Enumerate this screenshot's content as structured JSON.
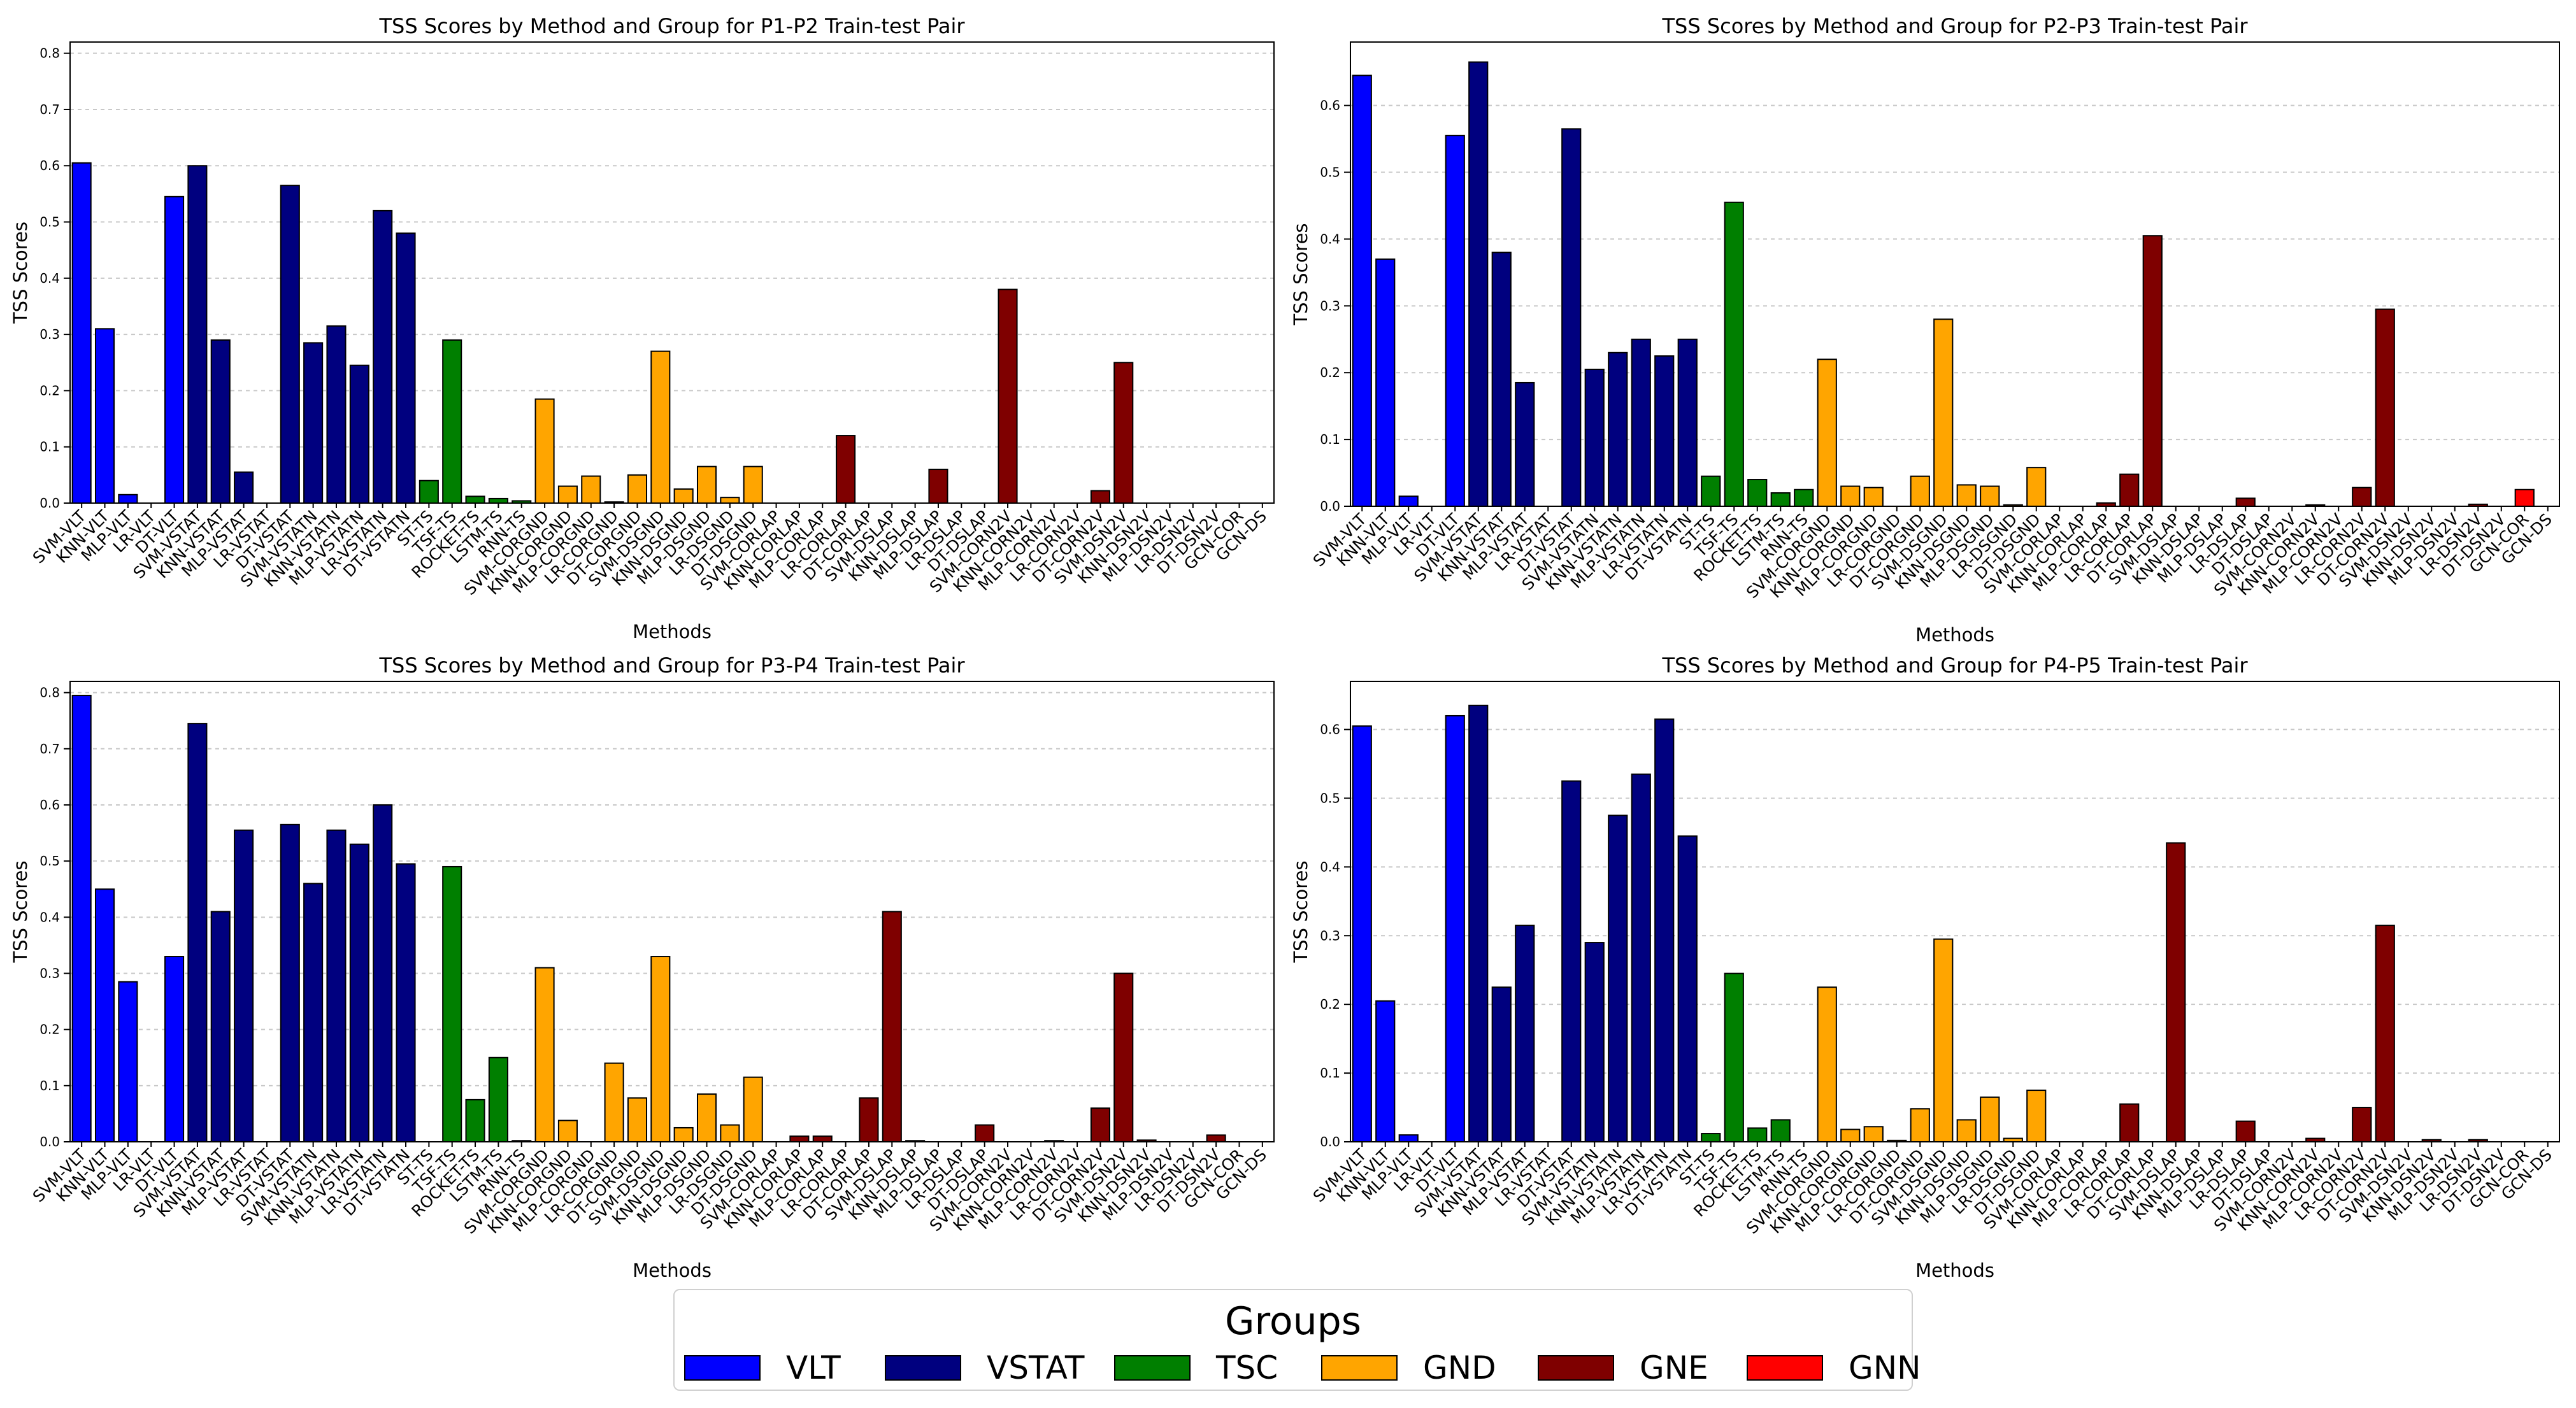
{
  "y_axis_label": "TSS Scores",
  "x_axis_label": "Methods",
  "legend": {
    "title": "Groups",
    "items": [
      {
        "name": "VLT",
        "color": "#0000ff"
      },
      {
        "name": "VSTAT",
        "color": "#00007f"
      },
      {
        "name": "TSC",
        "color": "#007f00"
      },
      {
        "name": "GND",
        "color": "#ffa500"
      },
      {
        "name": "GNE",
        "color": "#7f0000"
      },
      {
        "name": "GNN",
        "color": "#ff0000"
      }
    ]
  },
  "chart_data": [
    {
      "type": "bar",
      "title": "TSS Scores by Method and Group for P1-P2 Train-test Pair",
      "xlabel": "Methods",
      "ylabel": "TSS Scores",
      "ylim": [
        0,
        0.82
      ],
      "yticks": [
        "0.0",
        "0.1",
        "0.2",
        "0.3",
        "0.4",
        "0.5",
        "0.6",
        "0.7",
        "0.8"
      ],
      "categories": [
        "SVM-VLT",
        "KNN-VLT",
        "MLP-VLT",
        "LR-VLT",
        "DT-VLT",
        "SVM-VSTAT",
        "KNN-VSTAT",
        "MLP-VSTAT",
        "LR-VSTAT",
        "DT-VSTAT",
        "SVM-VSTATN",
        "KNN-VSTATN",
        "MLP-VSTATN",
        "LR-VSTATN",
        "DT-VSTATN",
        "ST-TS",
        "TSF-TS",
        "ROCKET-TS",
        "LSTM-TS",
        "RNN-TS",
        "SVM-CORGND",
        "KNN-CORGND",
        "MLP-CORGND",
        "LR-CORGND",
        "DT-CORGND",
        "SVM-DSGND",
        "KNN-DSGND",
        "MLP-DSGND",
        "LR-DSGND",
        "DT-DSGND",
        "SVM-CORLAP",
        "KNN-CORLAP",
        "MLP-CORLAP",
        "LR-CORLAP",
        "DT-CORLAP",
        "SVM-DSLAP",
        "KNN-DSLAP",
        "MLP-DSLAP",
        "LR-DSLAP",
        "DT-DSLAP",
        "SVM-CORN2V",
        "KNN-CORN2V",
        "MLP-CORN2V",
        "LR-CORN2V",
        "DT-CORN2V",
        "SVM-DSN2V",
        "KNN-DSN2V",
        "MLP-DSN2V",
        "LR-DSN2V",
        "DT-DSN2V",
        "GCN-COR",
        "GCN-DS"
      ],
      "groups": [
        "VLT",
        "VLT",
        "VLT",
        "VLT",
        "VLT",
        "VSTAT",
        "VSTAT",
        "VSTAT",
        "VSTAT",
        "VSTAT",
        "VSTAT",
        "VSTAT",
        "VSTAT",
        "VSTAT",
        "VSTAT",
        "TSC",
        "TSC",
        "TSC",
        "TSC",
        "TSC",
        "GND",
        "GND",
        "GND",
        "GND",
        "GND",
        "GND",
        "GND",
        "GND",
        "GND",
        "GND",
        "GNE",
        "GNE",
        "GNE",
        "GNE",
        "GNE",
        "GNE",
        "GNE",
        "GNE",
        "GNE",
        "GNE",
        "GNE",
        "GNE",
        "GNE",
        "GNE",
        "GNE",
        "GNE",
        "GNE",
        "GNE",
        "GNE",
        "GNE",
        "GNN",
        "GNN"
      ],
      "values": [
        0.605,
        0.31,
        0.015,
        0,
        0.545,
        0.6,
        0.29,
        0.055,
        0,
        0.565,
        0.285,
        0.315,
        0.245,
        0.52,
        0.48,
        0.04,
        0.29,
        0.012,
        0.008,
        0.004,
        0.185,
        0.03,
        0.048,
        0.002,
        0.05,
        0.27,
        0.025,
        0.065,
        0.01,
        0.065,
        0,
        0,
        0,
        0.12,
        0,
        0,
        0,
        0.06,
        0,
        0,
        0.38,
        0,
        0,
        0,
        0.022,
        0.25,
        0,
        0,
        0,
        0,
        0,
        0
      ]
    },
    {
      "type": "bar",
      "title": "TSS Scores by Method and Group for P2-P3 Train-test Pair",
      "xlabel": "Methods",
      "ylabel": "TSS Scores",
      "ylim": [
        0,
        0.695
      ],
      "yticks": [
        "0.0",
        "0.1",
        "0.2",
        "0.3",
        "0.4",
        "0.5",
        "0.6"
      ],
      "categories": [
        "SVM-VLT",
        "KNN-VLT",
        "MLP-VLT",
        "LR-VLT",
        "DT-VLT",
        "SVM-VSTAT",
        "KNN-VSTAT",
        "MLP-VSTAT",
        "LR-VSTAT",
        "DT-VSTAT",
        "SVM-VSTATN",
        "KNN-VSTATN",
        "MLP-VSTATN",
        "LR-VSTATN",
        "DT-VSTATN",
        "ST-TS",
        "TSF-TS",
        "ROCKET-TS",
        "LSTM-TS",
        "RNN-TS",
        "SVM-CORGND",
        "KNN-CORGND",
        "MLP-CORGND",
        "LR-CORGND",
        "DT-CORGND",
        "SVM-DSGND",
        "KNN-DSGND",
        "MLP-DSGND",
        "LR-DSGND",
        "DT-DSGND",
        "SVM-CORLAP",
        "KNN-CORLAP",
        "MLP-CORLAP",
        "LR-CORLAP",
        "DT-CORLAP",
        "SVM-DSLAP",
        "KNN-DSLAP",
        "MLP-DSLAP",
        "LR-DSLAP",
        "DT-DSLAP",
        "SVM-CORN2V",
        "KNN-CORN2V",
        "MLP-CORN2V",
        "LR-CORN2V",
        "DT-CORN2V",
        "SVM-DSN2V",
        "KNN-DSN2V",
        "MLP-DSN2V",
        "LR-DSN2V",
        "DT-DSN2V",
        "GCN-COR",
        "GCN-DS"
      ],
      "groups": [
        "VLT",
        "VLT",
        "VLT",
        "VLT",
        "VLT",
        "VSTAT",
        "VSTAT",
        "VSTAT",
        "VSTAT",
        "VSTAT",
        "VSTAT",
        "VSTAT",
        "VSTAT",
        "VSTAT",
        "VSTAT",
        "TSC",
        "TSC",
        "TSC",
        "TSC",
        "TSC",
        "GND",
        "GND",
        "GND",
        "GND",
        "GND",
        "GND",
        "GND",
        "GND",
        "GND",
        "GND",
        "GNE",
        "GNE",
        "GNE",
        "GNE",
        "GNE",
        "GNE",
        "GNE",
        "GNE",
        "GNE",
        "GNE",
        "GNE",
        "GNE",
        "GNE",
        "GNE",
        "GNE",
        "GNE",
        "GNE",
        "GNE",
        "GNE",
        "GNE",
        "GNN",
        "GNN"
      ],
      "values": [
        0.645,
        0.37,
        0.015,
        0,
        0.555,
        0.665,
        0.38,
        0.185,
        0,
        0.565,
        0.205,
        0.23,
        0.25,
        0.225,
        0.25,
        0.045,
        0.455,
        0.04,
        0.02,
        0.025,
        0.22,
        0.03,
        0.028,
        0,
        0.045,
        0.28,
        0.032,
        0.03,
        0.002,
        0.058,
        0,
        0,
        0.005,
        0.048,
        0.405,
        0,
        0,
        0,
        0.012,
        0,
        0,
        0.002,
        0,
        0.028,
        0.295,
        0,
        0,
        0,
        0.003,
        0,
        0.025,
        0
      ]
    },
    {
      "type": "bar",
      "title": "TSS Scores by Method and Group for P3-P4 Train-test Pair",
      "xlabel": "Methods",
      "ylabel": "TSS Scores",
      "ylim": [
        0,
        0.82
      ],
      "yticks": [
        "0.0",
        "0.1",
        "0.2",
        "0.3",
        "0.4",
        "0.5",
        "0.6",
        "0.7",
        "0.8"
      ],
      "categories": [
        "SVM-VLT",
        "KNN-VLT",
        "MLP-VLT",
        "LR-VLT",
        "DT-VLT",
        "SVM-VSTAT",
        "KNN-VSTAT",
        "MLP-VSTAT",
        "LR-VSTAT",
        "DT-VSTAT",
        "SVM-VSTATN",
        "KNN-VSTATN",
        "MLP-VSTATN",
        "LR-VSTATN",
        "DT-VSTATN",
        "ST-TS",
        "TSF-TS",
        "ROCKET-TS",
        "LSTM-TS",
        "RNN-TS",
        "SVM-CORGND",
        "KNN-CORGND",
        "MLP-CORGND",
        "LR-CORGND",
        "DT-CORGND",
        "SVM-DSGND",
        "KNN-DSGND",
        "MLP-DSGND",
        "LR-DSGND",
        "DT-DSGND",
        "SVM-CORLAP",
        "KNN-CORLAP",
        "MLP-CORLAP",
        "LR-CORLAP",
        "DT-CORLAP",
        "SVM-DSLAP",
        "KNN-DSLAP",
        "MLP-DSLAP",
        "LR-DSLAP",
        "DT-DSLAP",
        "SVM-CORN2V",
        "KNN-CORN2V",
        "MLP-CORN2V",
        "LR-CORN2V",
        "DT-CORN2V",
        "SVM-DSN2V",
        "KNN-DSN2V",
        "MLP-DSN2V",
        "LR-DSN2V",
        "DT-DSN2V",
        "GCN-COR",
        "GCN-DS"
      ],
      "groups": [
        "VLT",
        "VLT",
        "VLT",
        "VLT",
        "VLT",
        "VSTAT",
        "VSTAT",
        "VSTAT",
        "VSTAT",
        "VSTAT",
        "VSTAT",
        "VSTAT",
        "VSTAT",
        "VSTAT",
        "VSTAT",
        "TSC",
        "TSC",
        "TSC",
        "TSC",
        "TSC",
        "GND",
        "GND",
        "GND",
        "GND",
        "GND",
        "GND",
        "GND",
        "GND",
        "GND",
        "GND",
        "GNE",
        "GNE",
        "GNE",
        "GNE",
        "GNE",
        "GNE",
        "GNE",
        "GNE",
        "GNE",
        "GNE",
        "GNE",
        "GNE",
        "GNE",
        "GNE",
        "GNE",
        "GNE",
        "GNE",
        "GNE",
        "GNE",
        "GNE",
        "GNN",
        "GNN"
      ],
      "values": [
        0.795,
        0.45,
        0.285,
        0,
        0.33,
        0.745,
        0.41,
        0.555,
        0,
        0.565,
        0.46,
        0.555,
        0.53,
        0.6,
        0.495,
        0,
        0.49,
        0.075,
        0.15,
        0.002,
        0.31,
        0.038,
        0,
        0.14,
        0.078,
        0.33,
        0.025,
        0.085,
        0.03,
        0.115,
        0,
        0.01,
        0.01,
        0,
        0.078,
        0.41,
        0.002,
        0,
        0,
        0.03,
        0,
        0,
        0.002,
        0,
        0.06,
        0.3,
        0.003,
        0,
        0,
        0.012,
        0,
        0
      ]
    },
    {
      "type": "bar",
      "title": "TSS Scores by Method and Group for P4-P5 Train-test Pair",
      "xlabel": "Methods",
      "ylabel": "TSS Scores",
      "ylim": [
        0,
        0.67
      ],
      "yticks": [
        "0.0",
        "0.1",
        "0.2",
        "0.3",
        "0.4",
        "0.5",
        "0.6"
      ],
      "categories": [
        "SVM-VLT",
        "KNN-VLT",
        "MLP-VLT",
        "LR-VLT",
        "DT-VLT",
        "SVM-VSTAT",
        "KNN-VSTAT",
        "MLP-VSTAT",
        "LR-VSTAT",
        "DT-VSTAT",
        "SVM-VSTATN",
        "KNN-VSTATN",
        "MLP-VSTATN",
        "LR-VSTATN",
        "DT-VSTATN",
        "ST-TS",
        "TSF-TS",
        "ROCKET-TS",
        "LSTM-TS",
        "RNN-TS",
        "SVM-CORGND",
        "KNN-CORGND",
        "MLP-CORGND",
        "LR-CORGND",
        "DT-CORGND",
        "SVM-DSGND",
        "KNN-DSGND",
        "MLP-DSGND",
        "LR-DSGND",
        "DT-DSGND",
        "SVM-CORLAP",
        "KNN-CORLAP",
        "MLP-CORLAP",
        "LR-CORLAP",
        "DT-CORLAP",
        "SVM-DSLAP",
        "KNN-DSLAP",
        "MLP-DSLAP",
        "LR-DSLAP",
        "DT-DSLAP",
        "SVM-CORN2V",
        "KNN-CORN2V",
        "MLP-CORN2V",
        "LR-CORN2V",
        "DT-CORN2V",
        "SVM-DSN2V",
        "KNN-DSN2V",
        "MLP-DSN2V",
        "LR-DSN2V",
        "DT-DSN2V",
        "GCN-COR",
        "GCN-DS"
      ],
      "groups": [
        "VLT",
        "VLT",
        "VLT",
        "VLT",
        "VLT",
        "VSTAT",
        "VSTAT",
        "VSTAT",
        "VSTAT",
        "VSTAT",
        "VSTAT",
        "VSTAT",
        "VSTAT",
        "VSTAT",
        "VSTAT",
        "TSC",
        "TSC",
        "TSC",
        "TSC",
        "TSC",
        "GND",
        "GND",
        "GND",
        "GND",
        "GND",
        "GND",
        "GND",
        "GND",
        "GND",
        "GND",
        "GNE",
        "GNE",
        "GNE",
        "GNE",
        "GNE",
        "GNE",
        "GNE",
        "GNE",
        "GNE",
        "GNE",
        "GNE",
        "GNE",
        "GNE",
        "GNE",
        "GNE",
        "GNE",
        "GNE",
        "GNE",
        "GNE",
        "GNE",
        "GNN",
        "GNN"
      ],
      "values": [
        0.605,
        0.205,
        0.01,
        0,
        0.62,
        0.635,
        0.225,
        0.315,
        0,
        0.525,
        0.29,
        0.475,
        0.535,
        0.615,
        0.445,
        0.012,
        0.245,
        0.02,
        0.032,
        0,
        0.225,
        0.018,
        0.022,
        0.002,
        0.048,
        0.295,
        0.032,
        0.065,
        0.005,
        0.075,
        0,
        0,
        0,
        0.055,
        0,
        0.435,
        0,
        0,
        0.03,
        0,
        0,
        0.005,
        0,
        0.05,
        0.315,
        0,
        0.003,
        0,
        0.003,
        0,
        0,
        0
      ]
    }
  ]
}
